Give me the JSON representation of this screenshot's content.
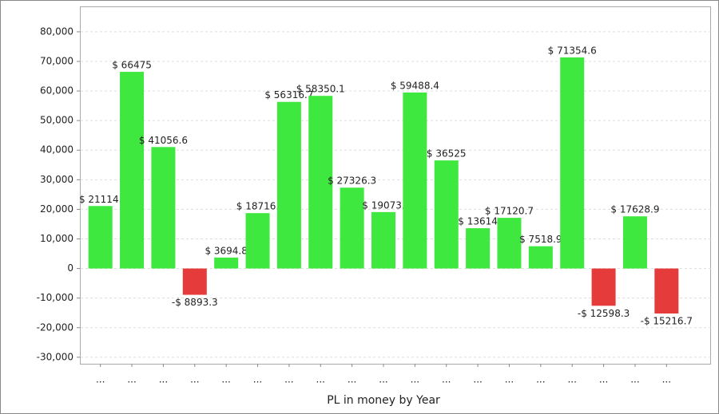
{
  "chart_data": {
    "type": "bar",
    "x_label": "PL in money by Year",
    "categories": [
      "...",
      "...",
      "...",
      "...",
      "...",
      "...",
      "...",
      "...",
      "...",
      "...",
      "...",
      "...",
      "...",
      "...",
      "...",
      "...",
      "...",
      "...",
      "..."
    ],
    "values": [
      21114,
      66475,
      41056.6,
      -8893.3,
      3694.8,
      18716,
      56316.7,
      58350.1,
      27326.3,
      19073,
      59488.4,
      36525,
      13614,
      17120.7,
      7518.9,
      71354.6,
      -12598.3,
      17628.9,
      -15216.7
    ],
    "value_labels": [
      "$ 21114.",
      "$ 66475",
      "$ 41056.6",
      "-$ 8893.3",
      "$ 3694.8",
      "$ 18716.",
      "$ 56316.7",
      "$ 58350.1",
      "$ 27326.3",
      "$ 19073.",
      "$ 59488.4",
      "$ 36525",
      "$ 13614",
      "$ 17120.7",
      "$ 7518.9",
      "$ 71354.6",
      "-$ 12598.3",
      "$ 17628.9",
      "-$ 15216.7"
    ],
    "colors": [
      "#3ee83e",
      "#3ee83e",
      "#3ee83e",
      "#e53b3b",
      "#3ee83e",
      "#3ee83e",
      "#3ee83e",
      "#3ee83e",
      "#3ee83e",
      "#3ee83e",
      "#3ee83e",
      "#3ee83e",
      "#3ee83e",
      "#3ee83e",
      "#3ee83e",
      "#3ee83e",
      "#e53b3b",
      "#3ee83e",
      "#e53b3b"
    ],
    "ylim": [
      -32200,
      88600
    ],
    "yticks": [
      {
        "value": -30000,
        "label": "-30,000"
      },
      {
        "value": -20000,
        "label": "-20,000"
      },
      {
        "value": -10000,
        "label": "-10,000"
      },
      0,
      {
        "value": 10000,
        "label": "10,000"
      },
      {
        "value": 20000,
        "label": "20,000"
      },
      {
        "value": 30000,
        "label": "30,000"
      },
      {
        "value": 40000,
        "label": "40,000"
      },
      {
        "value": 50000,
        "label": "50,000"
      },
      {
        "value": 60000,
        "label": "60,000"
      },
      {
        "value": 70000,
        "label": "70,000"
      },
      {
        "value": 80000,
        "label": "80,000"
      }
    ],
    "grid": true
  }
}
